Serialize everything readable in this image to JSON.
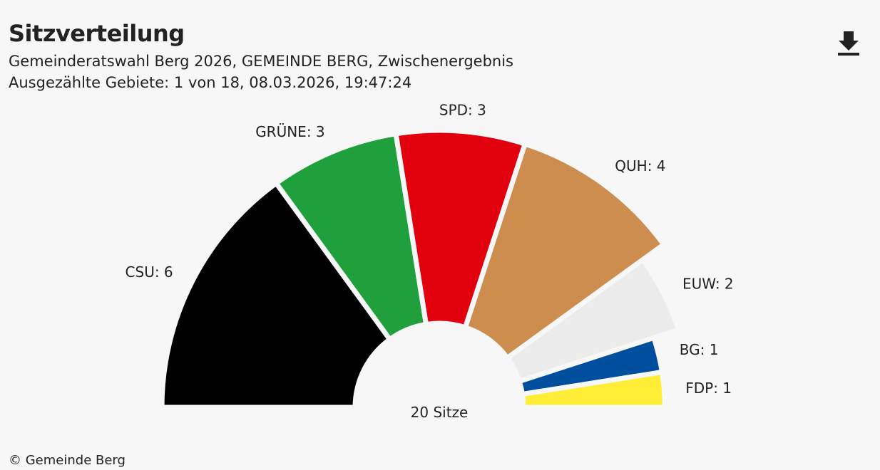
{
  "header": {
    "title": "Sitzverteilung",
    "subtitle_line1": "Gemeinderatswahl Berg 2026, GEMEINDE BERG, Zwischenergebnis",
    "subtitle_line2": "Ausgezählte Gebiete: 1 von 18, 08.03.2026, 19:47:24"
  },
  "download_icon": "download-icon",
  "footer": {
    "copyright": "© Gemeinde Berg"
  },
  "chart_data": {
    "type": "pie",
    "variant": "semicircle-donut",
    "center_label": "20 Sitze",
    "total": 20,
    "slices": [
      {
        "label": "CSU: 6",
        "party": "CSU",
        "value": 6,
        "color": "#000000"
      },
      {
        "label": "GRÜNE: 3",
        "party": "GRÜNE",
        "value": 3,
        "color": "#1fa03c"
      },
      {
        "label": "SPD: 3",
        "party": "SPD",
        "value": 3,
        "color": "#e2000f"
      },
      {
        "label": "QUH: 4",
        "party": "QUH",
        "value": 4,
        "color": "#cc8d4f"
      },
      {
        "label": "EUW: 2",
        "party": "EUW",
        "value": 2,
        "color": "#ececec"
      },
      {
        "label": "BG: 1",
        "party": "BG",
        "value": 1,
        "color": "#004f9f"
      },
      {
        "label": "FDP: 1",
        "party": "FDP",
        "value": 1,
        "color": "#ffed36"
      }
    ]
  }
}
